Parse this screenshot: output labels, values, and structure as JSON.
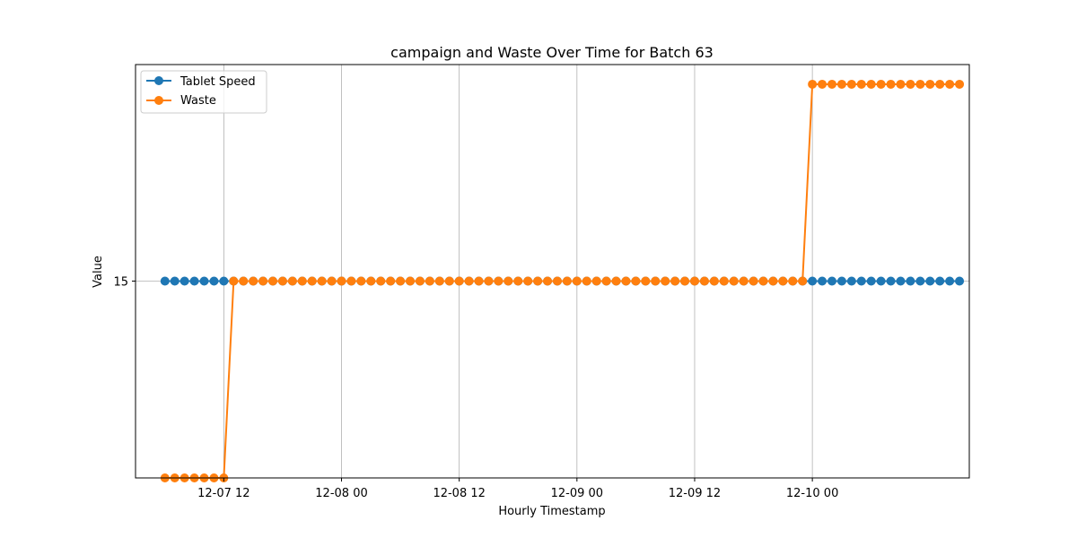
{
  "chart_data": {
    "type": "line",
    "title": "campaign and Waste Over Time for Batch 63",
    "xlabel": "Hourly Timestamp",
    "ylabel": "Value",
    "x_range": [
      "2007-12-07T03:00",
      "2007-12-10T16:00"
    ],
    "y_range": [
      14.5,
      15.55
    ],
    "x_ticks": [
      {
        "label": "12-07 12",
        "t": "2007-12-07T12:00"
      },
      {
        "label": "12-08 00",
        "t": "2007-12-08T00:00"
      },
      {
        "label": "12-08 12",
        "t": "2007-12-08T12:00"
      },
      {
        "label": "12-09 00",
        "t": "2007-12-09T00:00"
      },
      {
        "label": "12-09 12",
        "t": "2007-12-09T12:00"
      },
      {
        "label": "12-10 00",
        "t": "2007-12-10T00:00"
      }
    ],
    "y_ticks": [
      {
        "label": "15",
        "value": 15
      }
    ],
    "grid": true,
    "legend": "upper-left",
    "colors": {
      "tablet_speed": "#1f77b4",
      "waste": "#ff7f0e"
    },
    "series": [
      {
        "name": "Tablet Speed",
        "color": "#1f77b4",
        "segments": [
          {
            "start": "2007-12-07T06:00",
            "end": "2007-12-10T15:00",
            "value": 15
          }
        ]
      },
      {
        "name": "Waste",
        "color": "#ff7f0e",
        "segments": [
          {
            "start": "2007-12-07T06:00",
            "end": "2007-12-07T12:00",
            "value": 14.5
          },
          {
            "start": "2007-12-07T13:00",
            "end": "2007-12-09T23:00",
            "value": 15
          },
          {
            "start": "2007-12-10T00:00",
            "end": "2007-12-10T15:00",
            "value": 15.5
          }
        ]
      }
    ]
  }
}
